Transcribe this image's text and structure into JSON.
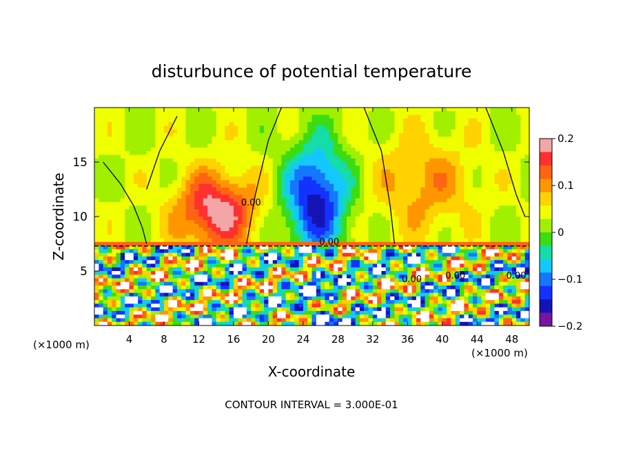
{
  "chart_data": {
    "type": "heatmap",
    "title": "disturbunce of potential temperature",
    "xlabel": "X-coordinate",
    "ylabel": "Z-coordinate",
    "x_unit": "(×1000 m)",
    "x_unit_right": "(×1000 m)",
    "footer": "CONTOUR INTERVAL = 3.000E-01",
    "xlim": [
      0,
      50
    ],
    "ylim": [
      0,
      20
    ],
    "x_ticks": [
      4,
      8,
      12,
      16,
      20,
      24,
      28,
      32,
      36,
      40,
      44,
      48
    ],
    "x_tick_labels": [
      "4",
      "8",
      "12",
      "16",
      "20",
      "24",
      "28",
      "32",
      "36",
      "40",
      "44",
      "48"
    ],
    "y_ticks": [
      5,
      10,
      15
    ],
    "y_tick_labels": [
      "5",
      "10",
      "15"
    ],
    "inversion_height": 7.3,
    "contour_labels": [
      {
        "text": "0.00",
        "x": 18,
        "z": 11
      },
      {
        "text": "0.00",
        "x": 27,
        "z": 7.4
      },
      {
        "text": "0.00",
        "x": 36.5,
        "z": 4
      },
      {
        "text": "0.00",
        "x": 41.5,
        "z": 4.3
      },
      {
        "text": "0.00",
        "x": 48.5,
        "z": 4.3
      }
    ],
    "colorbar": {
      "range": [
        -0.2,
        0.2
      ],
      "ticks": [
        0.2,
        0.1,
        0,
        -0.1,
        -0.2
      ],
      "tick_labels": [
        "0.2",
        "0.1",
        "0",
        "−0.1",
        "−0.2"
      ],
      "colors": [
        "#f4a6a6",
        "#ff3030",
        "#ff6414",
        "#ff9600",
        "#ffd200",
        "#f0ff00",
        "#a0f000",
        "#3cdc14",
        "#14dcaa",
        "#14c8ff",
        "#1478ff",
        "#1432ff",
        "#1414b4",
        "#7814a0"
      ]
    },
    "features": [
      {
        "kind": "warm",
        "x": 14,
        "z": 10.5,
        "sx": 4.5,
        "sz": 3.5,
        "value": 0.16
      },
      {
        "kind": "cold",
        "x": 25.5,
        "z": 11.5,
        "sx": 3.5,
        "sz": 5,
        "value": -0.19
      },
      {
        "kind": "warm",
        "x": 38,
        "z": 13,
        "sx": 5.5,
        "sz": 4.5,
        "value": 0.07
      }
    ]
  }
}
